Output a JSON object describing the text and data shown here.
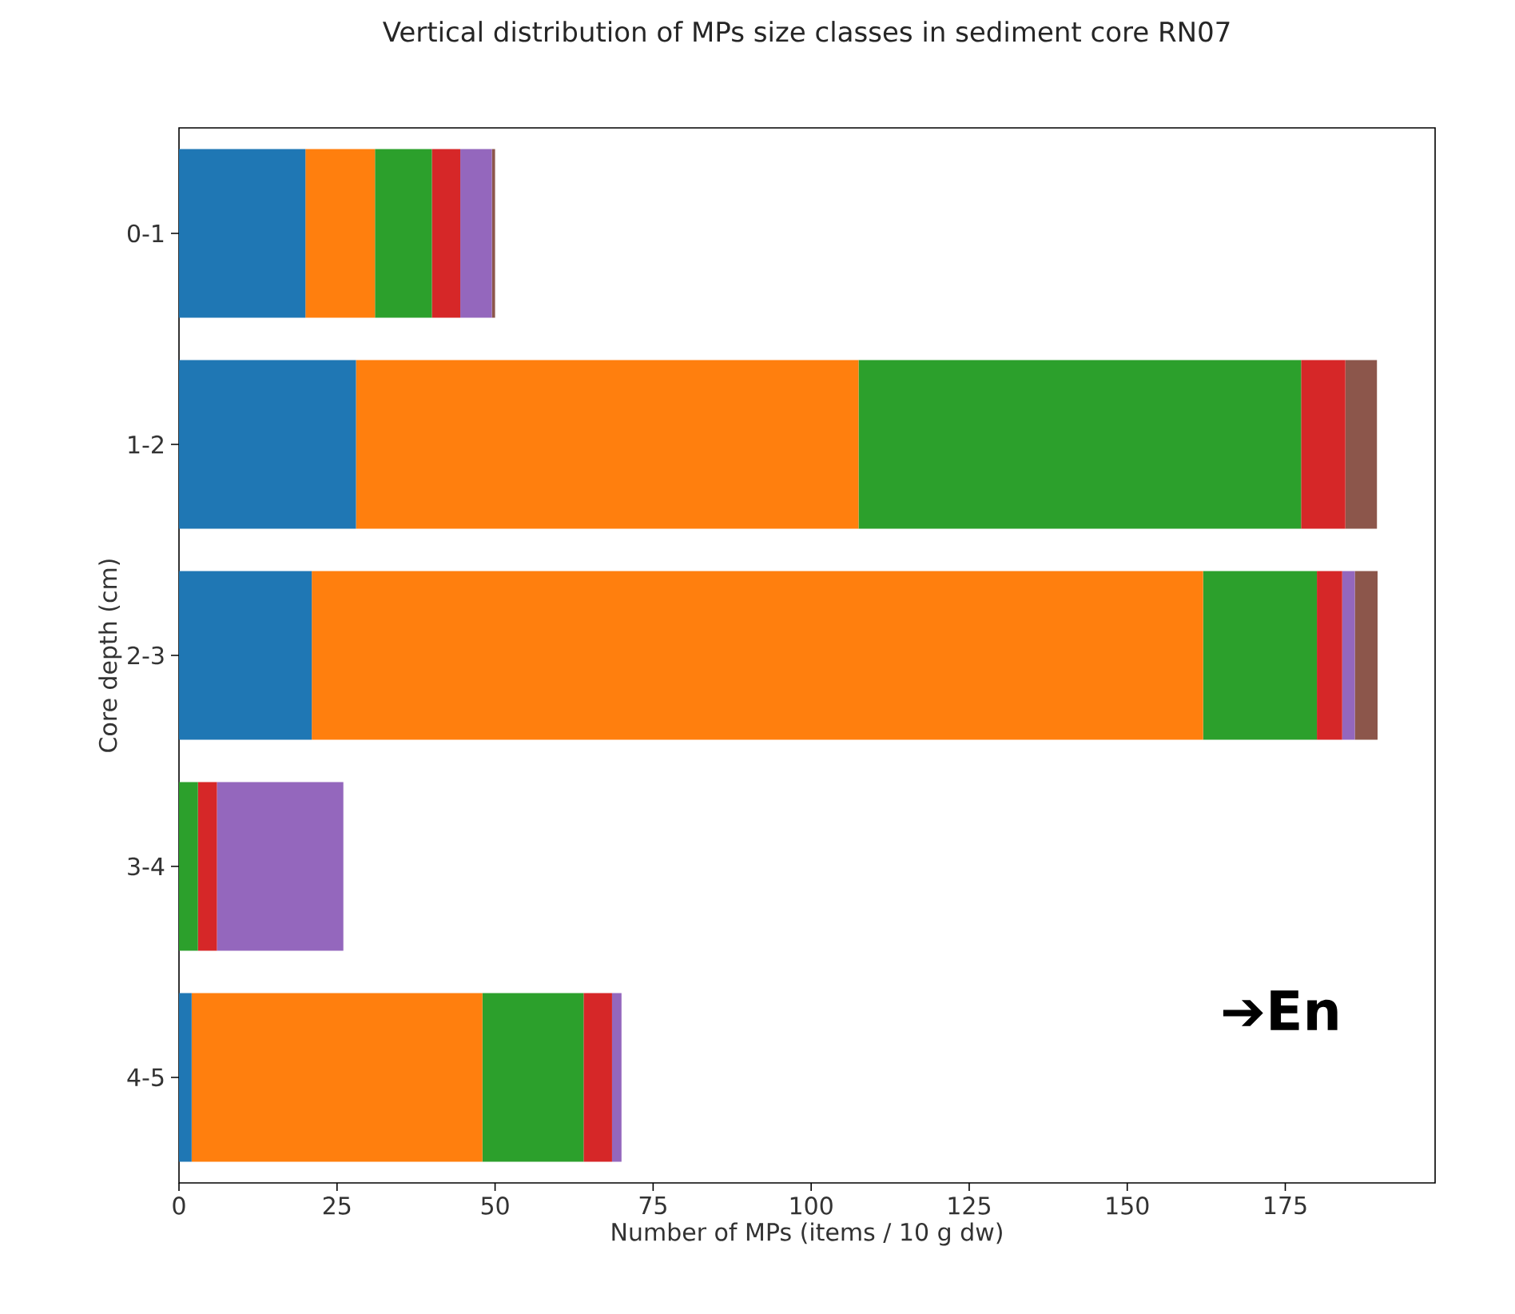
{
  "chart_data": {
    "type": "bar",
    "orientation": "horizontal",
    "stacked": true,
    "title": "Vertical distribution of MPs size classes in sediment core RN07",
    "xlabel": "Number of MPs (items / 10 g dw)",
    "ylabel": "Core depth (cm)",
    "categories": [
      "0-1",
      "1-2",
      "2-3",
      "3-4",
      "4-5"
    ],
    "series": [
      {
        "color": "#1f77b4",
        "values": [
          20,
          28,
          21,
          0,
          2
        ]
      },
      {
        "color": "#ff7f0e",
        "values": [
          11,
          79.5,
          141,
          0,
          46
        ]
      },
      {
        "color": "#2ca02c",
        "values": [
          9,
          70,
          18,
          3,
          16
        ]
      },
      {
        "color": "#d62728",
        "values": [
          4.5,
          7,
          4,
          3,
          4.5
        ]
      },
      {
        "color": "#9467bd",
        "values": [
          5,
          0,
          2,
          20,
          1.5
        ]
      },
      {
        "color": "#8c564b",
        "values": [
          0.5,
          5,
          3.6,
          0,
          0
        ]
      }
    ],
    "xlim": [
      0,
      198.7
    ],
    "xticks": [
      0,
      25,
      50,
      75,
      100,
      125,
      150,
      175
    ],
    "annotations": [
      "➔En"
    ]
  }
}
